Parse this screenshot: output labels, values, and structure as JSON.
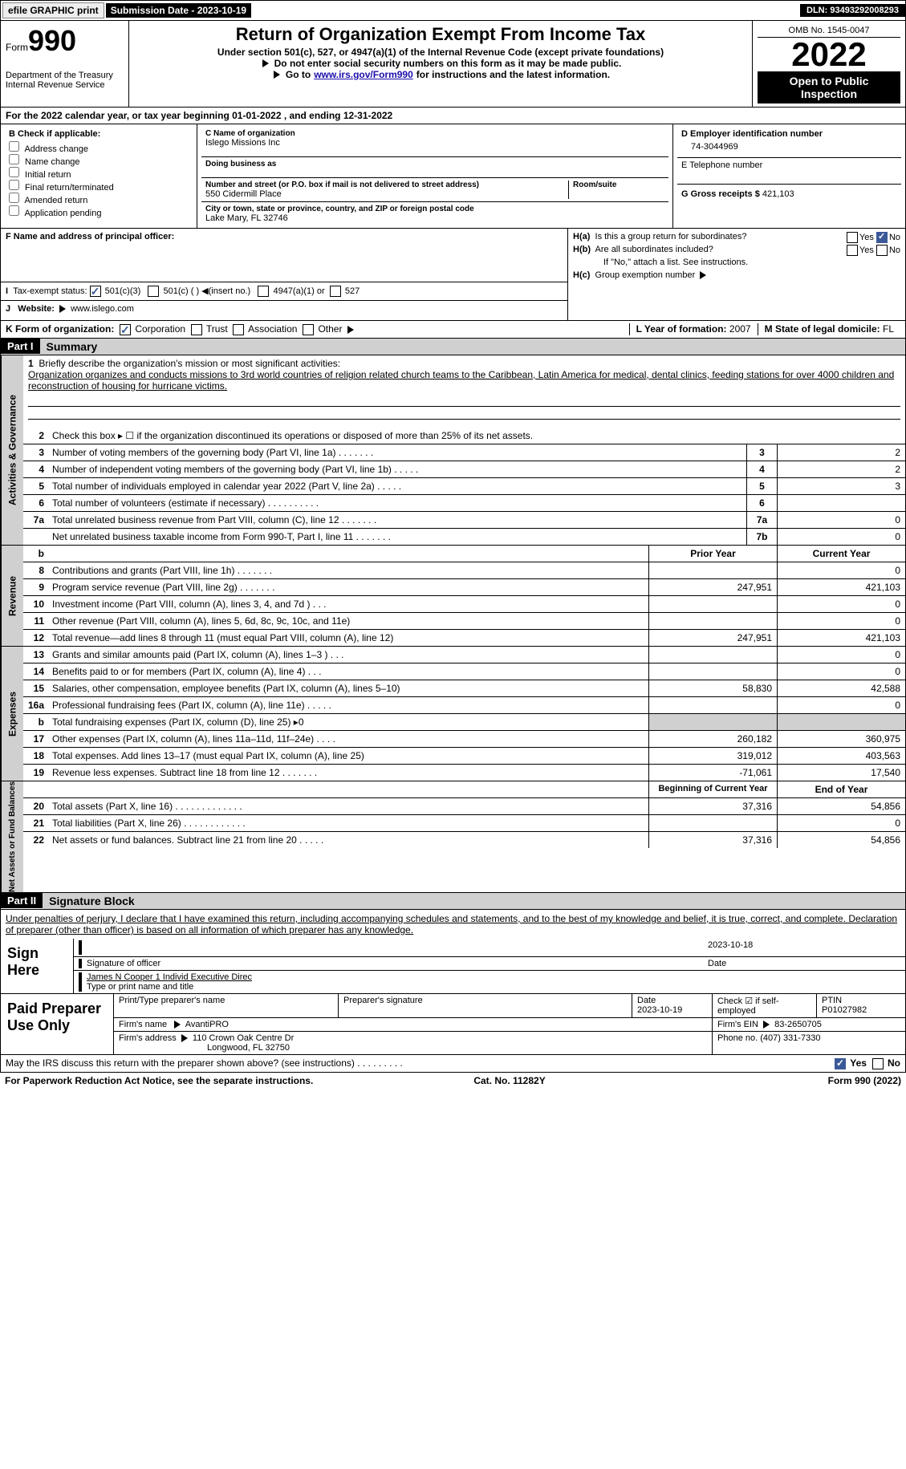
{
  "topbar": {
    "efile": "efile GRAPHIC print",
    "submission": "Submission Date - 2023-10-19",
    "dln": "DLN: 93493292008293"
  },
  "header": {
    "form_label": "Form",
    "form_num": "990",
    "dept": "Department of the Treasury",
    "irs": "Internal Revenue Service",
    "title": "Return of Organization Exempt From Income Tax",
    "sub1": "Under section 501(c), 527, or 4947(a)(1) of the Internal Revenue Code (except private foundations)",
    "sub2a": "Do not enter social security numbers on this form as it may be made public.",
    "sub2b": "Go to ",
    "link": "www.irs.gov/Form990",
    "sub2c": " for instructions and the latest information.",
    "omb": "OMB No. 1545-0047",
    "year": "2022",
    "inspect": "Open to Public Inspection"
  },
  "lineA": "For the 2022 calendar year, or tax year beginning 01-01-2022    , and ending 12-31-2022",
  "boxB": {
    "title": "B Check if applicable:",
    "opts": [
      "Address change",
      "Name change",
      "Initial return",
      "Final return/terminated",
      "Amended return",
      "Application pending"
    ]
  },
  "boxC": {
    "name_label": "C Name of organization",
    "name": "Islego Missions Inc",
    "dba": "Doing business as",
    "addr_label": "Number and street (or P.O. box if mail is not delivered to street address)",
    "room": "Room/suite",
    "addr": "550 Cidermill Place",
    "city_label": "City or town, state or province, country, and ZIP or foreign postal code",
    "city": "Lake Mary, FL  32746"
  },
  "boxD": {
    "label": "D Employer identification number",
    "val": "74-3044969",
    "e_label": "E Telephone number",
    "g_label": "G Gross receipts $",
    "g_val": "421,103"
  },
  "boxF": {
    "label": "F Name and address of principal officer:"
  },
  "boxH": {
    "a": "Is this a group return for subordinates?",
    "b": "Are all subordinates included?",
    "b2": "If \"No,\" attach a list. See instructions.",
    "c": "Group exemption number",
    "yes": "Yes",
    "no": "No"
  },
  "lineI": {
    "label": "Tax-exempt status:",
    "o1": "501(c)(3)",
    "o2": "501(c) (  )",
    "o2b": "(insert no.)",
    "o3": "4947(a)(1) or",
    "o4": "527"
  },
  "lineJ": {
    "label": "Website:",
    "val": "www.islego.com"
  },
  "lineK": {
    "label": "K Form of organization:",
    "o1": "Corporation",
    "o2": "Trust",
    "o3": "Association",
    "o4": "Other"
  },
  "lineL": {
    "label": "L Year of formation:",
    "val": "2007"
  },
  "lineM": {
    "label": "M State of legal domicile:",
    "val": "FL"
  },
  "part1": {
    "num": "Part I",
    "title": "Summary"
  },
  "mission": {
    "prompt": "Briefly describe the organization's mission or most significant activities:",
    "text": "Organization organizes and conducts missions to 3rd world countries of religion related church teams to the Caribbean, Latin America for medical, dental clinics, feeding stations for over 4000 children and reconstruction of housing for hurricane victims."
  },
  "lines_gov": [
    {
      "n": "2",
      "t": "Check this box ▸ ☐  if the organization discontinued its operations or disposed of more than 25% of its net assets.",
      "box": "",
      "v": ""
    },
    {
      "n": "3",
      "t": "Number of voting members of the governing body (Part VI, line 1a)   .    .    .    .    .    .    .",
      "box": "3",
      "v": "2"
    },
    {
      "n": "4",
      "t": "Number of independent voting members of the governing body (Part VI, line 1b)   .    .    .    .    .",
      "box": "4",
      "v": "2"
    },
    {
      "n": "5",
      "t": "Total number of individuals employed in calendar year 2022 (Part V, line 2a)   .    .    .    .    .",
      "box": "5",
      "v": "3"
    },
    {
      "n": "6",
      "t": "Total number of volunteers (estimate if necessary)    .    .    .    .    .    .    .    .    .    .",
      "box": "6",
      "v": ""
    },
    {
      "n": "7a",
      "t": "Total unrelated business revenue from Part VIII, column (C), line 12    .    .    .    .    .    .    .",
      "box": "7a",
      "v": "0"
    },
    {
      "n": "",
      "t": "Net unrelated business taxable income from Form 990-T, Part I, line 11   .    .    .    .    .    .    .",
      "box": "7b",
      "v": "0"
    }
  ],
  "col_hdrs": {
    "prior": "Prior Year",
    "current": "Current Year"
  },
  "rev": [
    {
      "n": "8",
      "t": "Contributions and grants (Part VIII, line 1h)    .    .    .    .    .    .    .",
      "p": "",
      "c": "0"
    },
    {
      "n": "9",
      "t": "Program service revenue (Part VIII, line 2g)   .    .    .    .    .    .    .",
      "p": "247,951",
      "c": "421,103"
    },
    {
      "n": "10",
      "t": "Investment income (Part VIII, column (A), lines 3, 4, and 7d )    .    .    .",
      "p": "",
      "c": "0"
    },
    {
      "n": "11",
      "t": "Other revenue (Part VIII, column (A), lines 5, 6d, 8c, 9c, 10c, and 11e)",
      "p": "",
      "c": "0"
    },
    {
      "n": "12",
      "t": "Total revenue—add lines 8 through 11 (must equal Part VIII, column (A), line 12)",
      "p": "247,951",
      "c": "421,103"
    }
  ],
  "exp": [
    {
      "n": "13",
      "t": "Grants and similar amounts paid (Part IX, column (A), lines 1–3 )   .    .    .",
      "p": "",
      "c": "0"
    },
    {
      "n": "14",
      "t": "Benefits paid to or for members (Part IX, column (A), line 4)   .    .    .",
      "p": "",
      "c": "0"
    },
    {
      "n": "15",
      "t": "Salaries, other compensation, employee benefits (Part IX, column (A), lines 5–10)",
      "p": "58,830",
      "c": "42,588"
    },
    {
      "n": "16a",
      "t": "Professional fundraising fees (Part IX, column (A), line 11e)    .    .    .    .    .",
      "p": "",
      "c": "0"
    },
    {
      "n": "b",
      "t": "Total fundraising expenses (Part IX, column (D), line 25) ▸0",
      "p": "gray",
      "c": "gray"
    },
    {
      "n": "17",
      "t": "Other expenses (Part IX, column (A), lines 11a–11d, 11f–24e)    .    .    .    .",
      "p": "260,182",
      "c": "360,975"
    },
    {
      "n": "18",
      "t": "Total expenses. Add lines 13–17 (must equal Part IX, column (A), line 25)",
      "p": "319,012",
      "c": "403,563"
    },
    {
      "n": "19",
      "t": "Revenue less expenses. Subtract line 18 from line 12  .    .    .    .    .    .    .",
      "p": "-71,061",
      "c": "17,540"
    }
  ],
  "net_hdrs": {
    "begin": "Beginning of Current Year",
    "end": "End of Year"
  },
  "net": [
    {
      "n": "20",
      "t": "Total assets (Part X, line 16)  .    .    .    .    .    .    .    .    .    .    .    .    .",
      "p": "37,316",
      "c": "54,856"
    },
    {
      "n": "21",
      "t": "Total liabilities (Part X, line 26)   .    .    .    .    .    .    .    .    .    .    .    .",
      "p": "",
      "c": "0"
    },
    {
      "n": "22",
      "t": "Net assets or fund balances. Subtract line 21 from line 20    .    .    .    .    .",
      "p": "37,316",
      "c": "54,856"
    }
  ],
  "part2": {
    "num": "Part II",
    "title": "Signature Block"
  },
  "sig": {
    "decl": "Under penalties of perjury, I declare that I have examined this return, including accompanying schedules and statements, and to the best of my knowledge and belief, it is true, correct, and complete. Declaration of preparer (other than officer) is based on all information of which preparer has any knowledge.",
    "here": "Sign Here",
    "sig_label": "Signature of officer",
    "date": "2023-10-18",
    "date_label": "Date",
    "name": "James N Cooper 1 Individ  Executive Direc",
    "name_label": "Type or print name and title"
  },
  "prep": {
    "label": "Paid Preparer Use Only",
    "h1": "Print/Type preparer's name",
    "h2": "Preparer's signature",
    "h3": "Date",
    "h3v": "2023-10-19",
    "h4": "Check ☑ if self-employed",
    "h5": "PTIN",
    "h5v": "P01027982",
    "firm_l": "Firm's name",
    "firm": "AvantiPRO",
    "ein_l": "Firm's EIN",
    "ein": "83-2650705",
    "addr_l": "Firm's address",
    "addr1": "110 Crown Oak Centre Dr",
    "addr2": "Longwood, FL 32750",
    "phone_l": "Phone no.",
    "phone": "(407) 331-7330"
  },
  "may": "May the IRS discuss this return with the preparer shown above? (see instructions)   .    .    .    .    .    .    .    .    .",
  "footer": {
    "l": "For Paperwork Reduction Act Notice, see the separate instructions.",
    "m": "Cat. No. 11282Y",
    "r": "Form 990 (2022)"
  }
}
